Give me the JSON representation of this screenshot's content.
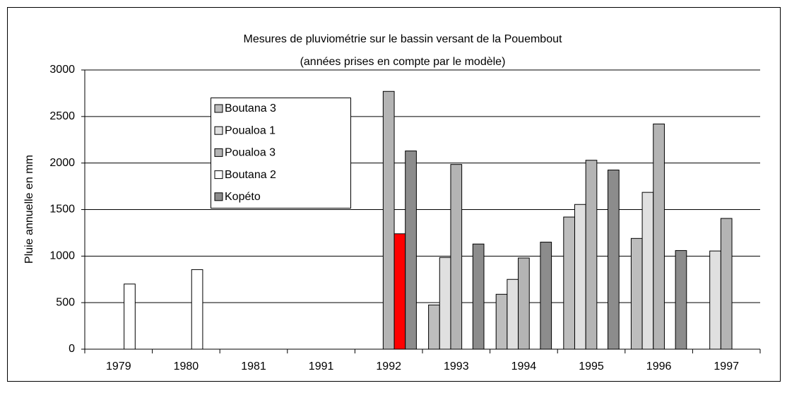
{
  "chart_data": {
    "type": "bar",
    "title": "Mesures de pluviométrie sur le bassin versant de la Pouembout",
    "subtitle": "(années prises en compte par le modèle)",
    "y_label": "Pluie annuelle en mm",
    "categories": [
      "1979",
      "1980",
      "1981",
      "1991",
      "1992",
      "1993",
      "1994",
      "1995",
      "1996",
      "1997"
    ],
    "series": [
      {
        "name": "Boutana 3",
        "color": "#bdbdbd",
        "values": [
          null,
          null,
          null,
          null,
          null,
          475,
          590,
          1420,
          1190,
          null
        ]
      },
      {
        "name": "Poualoa 1",
        "color": "#e0e0e0",
        "values": [
          null,
          null,
          null,
          null,
          null,
          985,
          750,
          1555,
          1685,
          1055
        ]
      },
      {
        "name": "Poualoa 3",
        "color": "#b4b4b4",
        "values": [
          null,
          null,
          null,
          null,
          2770,
          1985,
          980,
          2030,
          2420,
          1405
        ]
      },
      {
        "name": "Boutana 2",
        "color": "#ffffff",
        "colors": [
          "#ffffff",
          "#ffffff",
          "#ffffff",
          "#ffffff",
          "#ff0000",
          "#ffffff",
          "#ffffff",
          "#ffffff",
          "#ffffff",
          "#ffffff"
        ],
        "values": [
          700,
          855,
          null,
          null,
          1240,
          null,
          null,
          null,
          null,
          null
        ]
      },
      {
        "name": "Kopéto",
        "color": "#8c8c8c",
        "values": [
          null,
          null,
          null,
          null,
          2130,
          1130,
          1150,
          1925,
          1060,
          null
        ]
      }
    ],
    "ylim": [
      0,
      3000
    ],
    "yticks": [
      0,
      500,
      1000,
      1500,
      2000,
      2500,
      3000
    ],
    "grid": true
  }
}
